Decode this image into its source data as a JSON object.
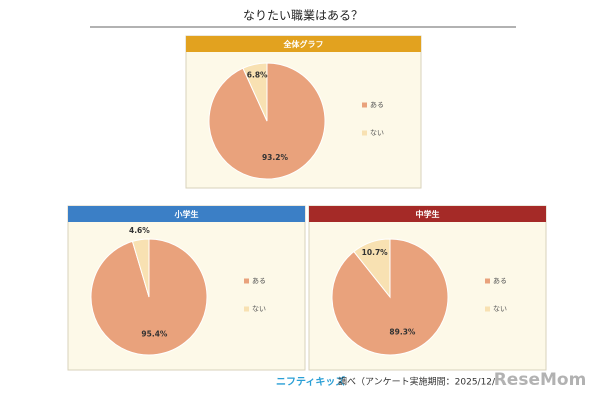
{
  "title": "なりたい職業はある？",
  "footer": {
    "brand": "ニフティキッズ",
    "note": "調べ（アンケート実施期間：2025/12/",
    "watermark": "ReseMom"
  },
  "chart_data": [
    {
      "type": "pie",
      "title": "全体グラフ",
      "header_color": "#e2a21f",
      "categories": [
        "ある",
        "ない"
      ],
      "values": [
        93.2,
        6.8
      ],
      "value_labels": [
        "93.2%",
        "6.8%"
      ],
      "colors": [
        "#e9a27c",
        "#f8e1b2"
      ]
    },
    {
      "type": "pie",
      "title": "小学生",
      "header_color": "#3b7fc6",
      "categories": [
        "ある",
        "ない"
      ],
      "values": [
        95.4,
        4.6
      ],
      "value_labels": [
        "95.4%",
        "4.6%"
      ],
      "colors": [
        "#e9a27c",
        "#f8e1b2"
      ]
    },
    {
      "type": "pie",
      "title": "中学生",
      "header_color": "#a52a27",
      "categories": [
        "ある",
        "ない"
      ],
      "values": [
        89.3,
        10.7
      ],
      "value_labels": [
        "89.3%",
        "10.7%"
      ],
      "colors": [
        "#e9a27c",
        "#f8e1b2"
      ]
    }
  ]
}
